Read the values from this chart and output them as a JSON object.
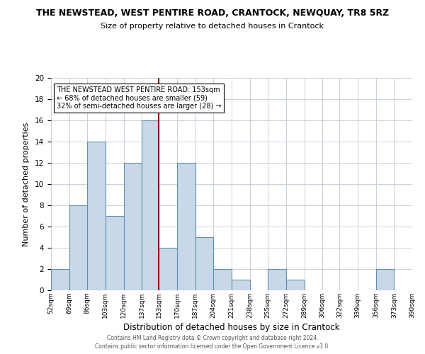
{
  "title": "THE NEWSTEAD, WEST PENTIRE ROAD, CRANTOCK, NEWQUAY, TR8 5RZ",
  "subtitle": "Size of property relative to detached houses in Crantock",
  "xlabel": "Distribution of detached houses by size in Crantock",
  "ylabel": "Number of detached properties",
  "bin_edges": [
    52,
    69,
    86,
    103,
    120,
    137,
    153,
    170,
    187,
    204,
    221,
    238,
    255,
    272,
    289,
    306,
    322,
    339,
    356,
    373,
    390
  ],
  "bin_labels": [
    "52sqm",
    "69sqm",
    "86sqm",
    "103sqm",
    "120sqm",
    "137sqm",
    "153sqm",
    "170sqm",
    "187sqm",
    "204sqm",
    "221sqm",
    "238sqm",
    "255sqm",
    "272sqm",
    "289sqm",
    "306sqm",
    "322sqm",
    "339sqm",
    "356sqm",
    "373sqm",
    "390sqm"
  ],
  "counts": [
    2,
    8,
    14,
    7,
    12,
    16,
    4,
    12,
    5,
    2,
    1,
    0,
    2,
    1,
    0,
    0,
    0,
    0,
    2,
    0
  ],
  "marker_value": 153,
  "bar_color": "#c8d8e8",
  "bar_edge_color": "#6090b0",
  "marker_color": "#8b0000",
  "ylim": [
    0,
    20
  ],
  "yticks": [
    0,
    2,
    4,
    6,
    8,
    10,
    12,
    14,
    16,
    18,
    20
  ],
  "annotation_title": "THE NEWSTEAD WEST PENTIRE ROAD: 153sqm",
  "annotation_line1": "← 68% of detached houses are smaller (59)",
  "annotation_line2": "32% of semi-detached houses are larger (28) →",
  "footnote1": "Contains HM Land Registry data © Crown copyright and database right 2024.",
  "footnote2": "Contains public sector information licensed under the Open Government Licence v3.0.",
  "background_color": "#ffffff",
  "grid_color": "#c8d0dc"
}
